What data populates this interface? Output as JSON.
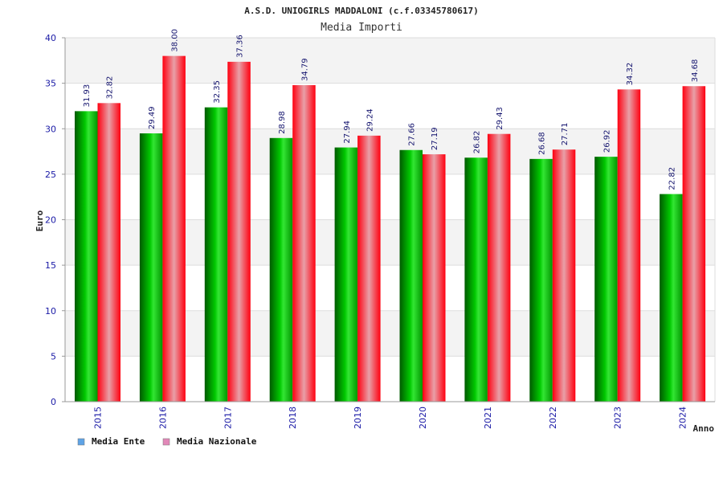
{
  "chart_data": {
    "type": "bar",
    "title": "A.S.D. UNIOGIRLS MADDALONI (c.f.03345780617)",
    "subtitle": "Media Importi",
    "ylabel": "Euro",
    "xlabel": "Anno",
    "ylim": [
      0,
      40
    ],
    "yticks": [
      "0",
      "5",
      "10",
      "15",
      "20",
      "25",
      "30",
      "35",
      "40"
    ],
    "categories": [
      "2015",
      "2016",
      "2017",
      "2018",
      "2019",
      "2020",
      "2021",
      "2022",
      "2023",
      "2024"
    ],
    "series": [
      {
        "name": "Media Ente",
        "values": [
          31.93,
          29.49,
          32.35,
          28.98,
          27.94,
          27.66,
          26.82,
          26.68,
          26.92,
          22.82
        ],
        "labels": [
          "31.93",
          "29.49",
          "32.35",
          "28.98",
          "27.94",
          "27.66",
          "26.82",
          "26.68",
          "26.92",
          "22.82"
        ],
        "bar_color": "#00b400",
        "legend_color": "#5ea3e6"
      },
      {
        "name": "Media Nazionale",
        "values": [
          32.82,
          38.0,
          37.36,
          34.79,
          29.24,
          27.19,
          29.43,
          27.71,
          34.32,
          34.68
        ],
        "labels": [
          "32.82",
          "38.00",
          "37.36",
          "34.79",
          "29.24",
          "27.19",
          "29.43",
          "27.71",
          "34.32",
          "34.68"
        ],
        "bar_color": "#f01020",
        "legend_color": "#e288b8"
      }
    ],
    "grid": true,
    "legend": "bottom-left"
  }
}
